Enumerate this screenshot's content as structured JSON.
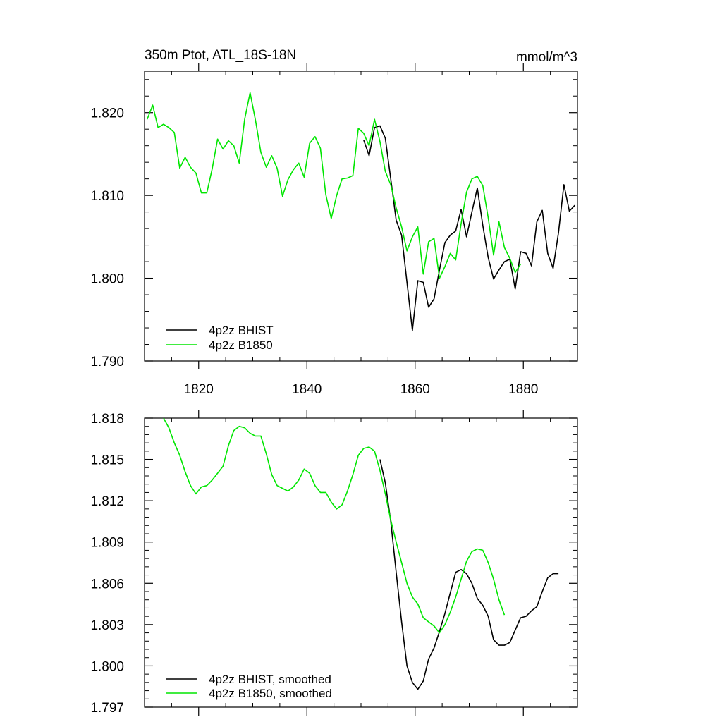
{
  "chart_data": [
    {
      "type": "line",
      "title": "350m Ptot, ATL_18S-18N",
      "units": "mmol/m^3",
      "xlabel": "",
      "ylabel": "",
      "xlim": [
        1810,
        1890
      ],
      "ylim": [
        1.79,
        1.825
      ],
      "xticks": [
        1820,
        1840,
        1860,
        1880
      ],
      "yticks": [
        1.79,
        1.8,
        1.81,
        1.82
      ],
      "x_tick_labels": [
        "1820",
        "1840",
        "1860",
        "1880"
      ],
      "y_tick_labels": [
        "1.790",
        "1.800",
        "1.810",
        "1.820"
      ],
      "legend_position": "bottom-left",
      "series": [
        {
          "name": "4p2z BHIST",
          "color": "#000000",
          "x": [
            1850.5,
            1851.5,
            1852.5,
            1853.5,
            1854.5,
            1855.5,
            1856.5,
            1857.5,
            1858.5,
            1859.5,
            1860.5,
            1861.5,
            1862.5,
            1863.5,
            1864.5,
            1865.5,
            1866.5,
            1867.5,
            1868.5,
            1869.5,
            1870.5,
            1871.5,
            1872.5,
            1873.5,
            1874.5,
            1875.5,
            1876.5,
            1877.5,
            1878.5,
            1879.5,
            1880.5,
            1881.5,
            1882.5,
            1883.5,
            1884.5,
            1885.5,
            1886.5,
            1887.5,
            1888.5,
            1889.5
          ],
          "y": [
            1.8167,
            1.8148,
            1.8182,
            1.8184,
            1.8169,
            1.812,
            1.807,
            1.8052,
            1.7995,
            1.7937,
            1.7997,
            1.7995,
            1.7965,
            1.7975,
            1.801,
            1.8043,
            1.8052,
            1.8057,
            1.8083,
            1.805,
            1.808,
            1.8109,
            1.8064,
            1.8025,
            1.7999,
            1.801,
            1.802,
            1.8023,
            1.7987,
            1.8032,
            1.803,
            1.8015,
            1.8068,
            1.8082,
            1.803,
            1.8012,
            1.8055,
            1.8113,
            1.8081,
            1.8088
          ]
        },
        {
          "name": "4p2z B1850",
          "color": "#00e600",
          "x": [
            1810.5,
            1811.5,
            1812.5,
            1813.5,
            1814.5,
            1815.5,
            1816.5,
            1817.5,
            1818.5,
            1819.5,
            1820.5,
            1821.5,
            1822.5,
            1823.5,
            1824.5,
            1825.5,
            1826.5,
            1827.5,
            1828.5,
            1829.5,
            1830.5,
            1831.5,
            1832.5,
            1833.5,
            1834.5,
            1835.5,
            1836.5,
            1837.5,
            1838.5,
            1839.5,
            1840.5,
            1841.5,
            1842.5,
            1843.5,
            1844.5,
            1845.5,
            1846.5,
            1847.5,
            1848.5,
            1849.5,
            1850.5,
            1851.5,
            1852.5,
            1853.5,
            1854.5,
            1855.5,
            1856.5,
            1857.5,
            1858.5,
            1859.5,
            1860.5,
            1861.5,
            1862.5,
            1863.5,
            1864.5,
            1865.5,
            1866.5,
            1867.5,
            1868.5,
            1869.5,
            1870.5,
            1871.5,
            1872.5,
            1873.5,
            1874.5,
            1875.5,
            1876.5,
            1877.5,
            1878.5,
            1879.5
          ],
          "y": [
            1.8192,
            1.8209,
            1.8182,
            1.8186,
            1.8182,
            1.8176,
            1.8133,
            1.8146,
            1.8134,
            1.8127,
            1.8103,
            1.8103,
            1.8132,
            1.8168,
            1.8156,
            1.8166,
            1.816,
            1.8139,
            1.8192,
            1.8224,
            1.8191,
            1.8152,
            1.8134,
            1.8148,
            1.8133,
            1.8099,
            1.8119,
            1.8131,
            1.8139,
            1.8122,
            1.8163,
            1.8171,
            1.8157,
            1.8101,
            1.8072,
            1.81,
            1.812,
            1.8121,
            1.8124,
            1.8181,
            1.8175,
            1.816,
            1.8192,
            1.8165,
            1.8129,
            1.8113,
            1.8085,
            1.8062,
            1.8033,
            1.805,
            1.8062,
            1.8005,
            1.8044,
            1.8048,
            1.8,
            1.8014,
            1.803,
            1.8022,
            1.8066,
            1.8104,
            1.812,
            1.8123,
            1.8112,
            1.8073,
            1.8028,
            1.8068,
            1.8037,
            1.8024,
            1.8007,
            1.8017
          ]
        }
      ]
    },
    {
      "type": "line",
      "title": "",
      "xlabel": "",
      "ylabel": "",
      "xlim": [
        1810,
        1890
      ],
      "ylim": [
        1.797,
        1.818
      ],
      "xticks": [
        1820,
        1840,
        1860,
        1880
      ],
      "yticks": [
        1.797,
        1.8,
        1.803,
        1.806,
        1.809,
        1.812,
        1.815,
        1.818
      ],
      "y_tick_labels": [
        "1.797",
        "1.800",
        "1.803",
        "1.806",
        "1.809",
        "1.812",
        "1.815",
        "1.818"
      ],
      "legend_position": "bottom-left",
      "series": [
        {
          "name": "4p2z BHIST, smoothed",
          "color": "#000000",
          "x": [
            1853.5,
            1854.5,
            1855.5,
            1856.5,
            1857.5,
            1858.5,
            1859.5,
            1860.5,
            1861.5,
            1862.5,
            1863.5,
            1864.5,
            1865.5,
            1866.5,
            1867.5,
            1868.5,
            1869.5,
            1870.5,
            1871.5,
            1872.5,
            1873.5,
            1874.5,
            1875.5,
            1876.5,
            1877.5,
            1878.5,
            1879.5,
            1880.5,
            1881.5,
            1882.5,
            1883.5,
            1884.5,
            1885.5,
            1886.5
          ],
          "y": [
            1.815,
            1.8133,
            1.8105,
            1.8068,
            1.8032,
            1.8,
            1.7988,
            1.7983,
            1.7989,
            1.8005,
            1.8013,
            1.8025,
            1.8038,
            1.8053,
            1.8068,
            1.807,
            1.8067,
            1.806,
            1.8049,
            1.8044,
            1.8036,
            1.8019,
            1.8015,
            1.8015,
            1.8017,
            1.8026,
            1.8035,
            1.8036,
            1.804,
            1.8043,
            1.8054,
            1.8064,
            1.8067,
            1.8067
          ]
        },
        {
          "name": "4p2z B1850, smoothed",
          "color": "#00e600",
          "x": [
            1813.5,
            1814.5,
            1815.5,
            1816.5,
            1817.5,
            1818.5,
            1819.5,
            1820.5,
            1821.5,
            1822.5,
            1823.5,
            1824.5,
            1825.5,
            1826.5,
            1827.5,
            1828.5,
            1829.5,
            1830.5,
            1831.5,
            1832.5,
            1833.5,
            1834.5,
            1835.5,
            1836.5,
            1837.5,
            1838.5,
            1839.5,
            1840.5,
            1841.5,
            1842.5,
            1843.5,
            1844.5,
            1845.5,
            1846.5,
            1847.5,
            1848.5,
            1849.5,
            1850.5,
            1851.5,
            1852.5,
            1853.5,
            1854.5,
            1855.5,
            1856.5,
            1857.5,
            1858.5,
            1859.5,
            1860.5,
            1861.5,
            1862.5,
            1863.5,
            1864.5,
            1865.5,
            1866.5,
            1867.5,
            1868.5,
            1869.5,
            1870.5,
            1871.5,
            1872.5,
            1873.5,
            1874.5,
            1875.5,
            1876.5
          ],
          "y": [
            1.818,
            1.8173,
            1.8162,
            1.8153,
            1.8141,
            1.8131,
            1.8125,
            1.813,
            1.8131,
            1.8135,
            1.814,
            1.8145,
            1.816,
            1.8171,
            1.8174,
            1.8173,
            1.8169,
            1.8167,
            1.8167,
            1.8154,
            1.8139,
            1.8131,
            1.8129,
            1.8127,
            1.813,
            1.8135,
            1.8143,
            1.814,
            1.8131,
            1.8126,
            1.8126,
            1.8119,
            1.8114,
            1.8117,
            1.8127,
            1.8139,
            1.8153,
            1.8158,
            1.8159,
            1.8156,
            1.8142,
            1.8125,
            1.8106,
            1.809,
            1.8075,
            1.806,
            1.805,
            1.8045,
            1.8035,
            1.8032,
            1.8029,
            1.8024,
            1.803,
            1.8039,
            1.805,
            1.8063,
            1.8076,
            1.8083,
            1.8085,
            1.8084,
            1.8075,
            1.8063,
            1.8048,
            1.8037
          ]
        }
      ]
    }
  ]
}
